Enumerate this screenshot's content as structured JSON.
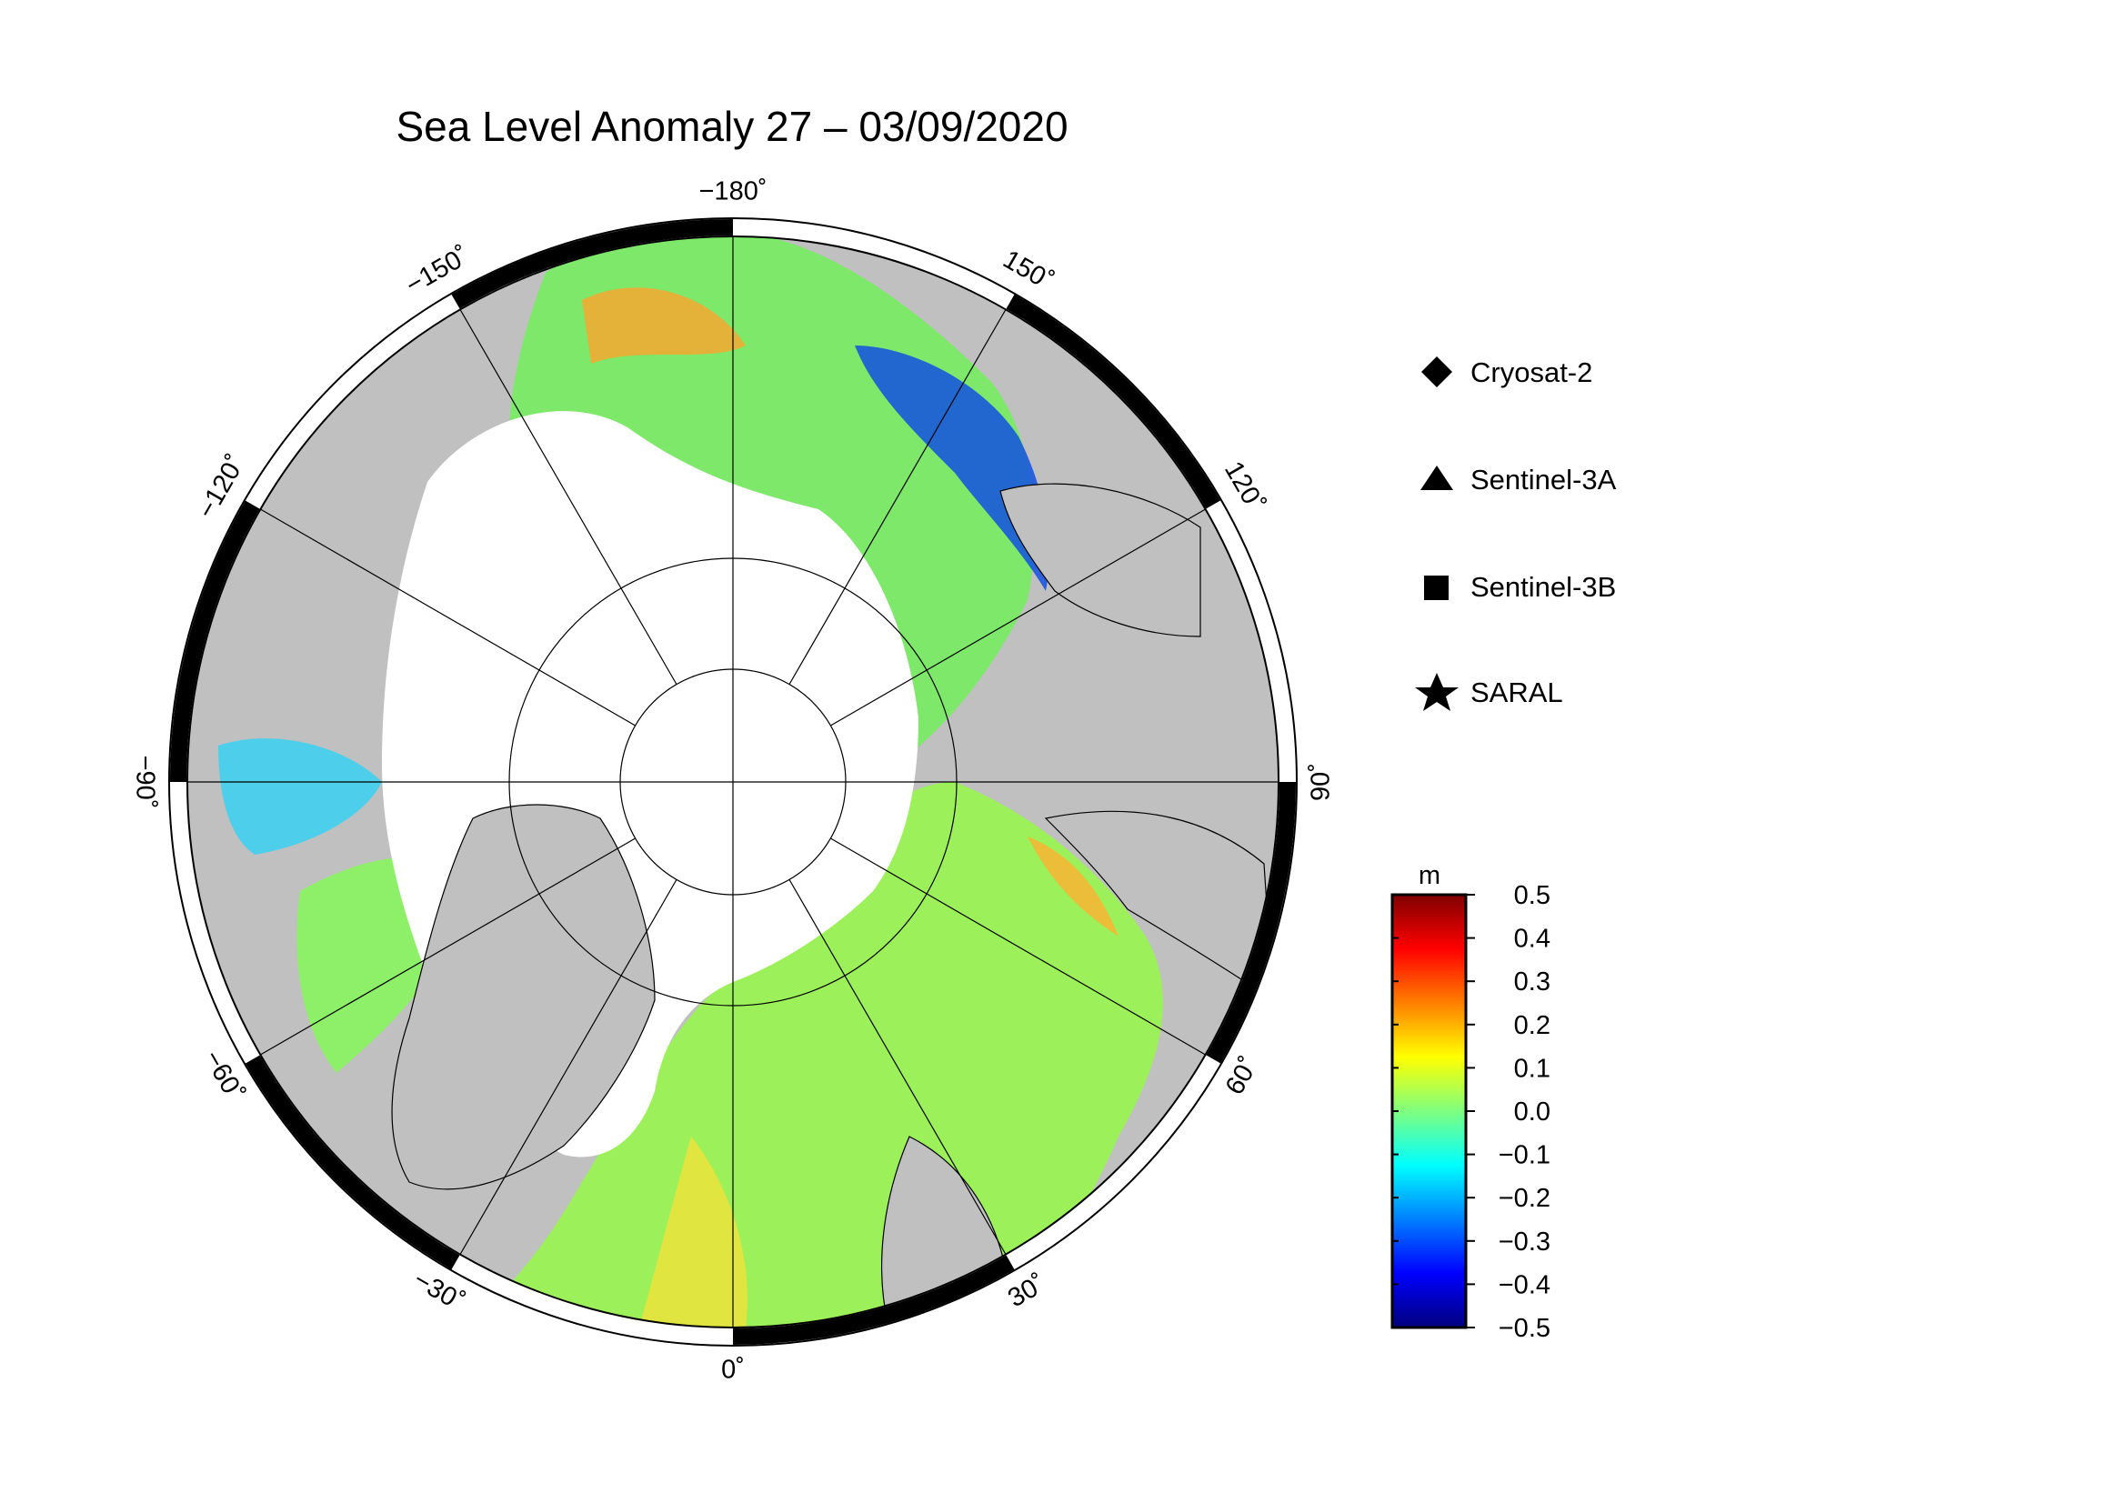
{
  "title": "Sea Level Anomaly 27 – 03/09/2020",
  "map": {
    "projection": "north-polar-stereographic",
    "longitude_labels": [
      {
        "lon": -180,
        "text": "−180˚"
      },
      {
        "lon": 150,
        "text": "150˚"
      },
      {
        "lon": 120,
        "text": "120˚"
      },
      {
        "lon": 90,
        "text": "90˚"
      },
      {
        "lon": 60,
        "text": "60˚"
      },
      {
        "lon": 30,
        "text": "30˚"
      },
      {
        "lon": 0,
        "text": "0˚"
      },
      {
        "lon": -30,
        "text": "−30˚"
      },
      {
        "lon": -60,
        "text": "−60˚"
      },
      {
        "lon": -90,
        "text": "−90˚"
      },
      {
        "lon": -120,
        "text": "−120˚"
      },
      {
        "lon": -150,
        "text": "−150˚"
      }
    ],
    "colors": {
      "land": "#c0c0c0",
      "ice_no_data": "#ffffff",
      "frame": "#000000"
    }
  },
  "legend": {
    "items": [
      {
        "label": "Cryosat-2",
        "marker": "diamond"
      },
      {
        "label": "Sentinel-3A",
        "marker": "triangle"
      },
      {
        "label": "Sentinel-3B",
        "marker": "square"
      },
      {
        "label": "SARAL",
        "marker": "star"
      }
    ]
  },
  "colorbar": {
    "unit": "m",
    "min": -0.5,
    "max": 0.5,
    "tick_labels": [
      "0.5",
      "0.4",
      "0.3",
      "0.2",
      "0.1",
      "0.0",
      "−0.1",
      "−0.2",
      "−0.3",
      "−0.4",
      "−0.5"
    ],
    "colormap_stops": [
      "#00007f",
      "#0000ff",
      "#007fff",
      "#00ffff",
      "#7fff7f",
      "#ffff00",
      "#ff7f00",
      "#ff0000",
      "#7f0000"
    ]
  }
}
